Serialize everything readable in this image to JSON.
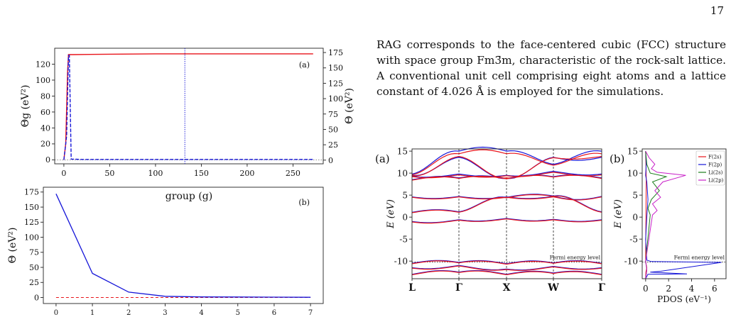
{
  "page_number": "17",
  "paragraph": "RAG corresponds to the face-centered cubic (FCC) structure with space group Fm3̄m, characteristic of the rock-salt lattice. A conventional unit cell comprising eight atoms and a lattice constant of 4.026 Å is employed for the simulations.",
  "colors": {
    "red": "#e8141a",
    "blue": "#1515d8",
    "green": "#1a7d1a",
    "magenta": "#c81fc8",
    "gray": "#666666"
  },
  "figures": {
    "a": {
      "panel_label": "(a)",
      "ylabel_left": "Θg (eV²)",
      "ylabel_right": "Θ (eV²)",
      "xlabel": "group (g)"
    },
    "b": {
      "panel_label": "(b)",
      "ylabel": "Θ (eV²)"
    },
    "band": {
      "panel_label": "(a)",
      "ylabel": "E (eV)",
      "fermi_label": "Fermi energy level"
    },
    "pdos": {
      "panel_label": "(b)",
      "ylabel": "E (eV)",
      "xlabel": "PDOS (eV⁻¹)",
      "fermi_label": "Fermi energy level"
    }
  },
  "chart_data": [
    {
      "type": "line",
      "panel": "(a)",
      "xlabel": "group (g)",
      "ylabel": "Θg (eV²)",
      "ylabel_right": "Θ (eV²)",
      "xlim": [
        -10,
        283
      ],
      "ylim": [
        -5,
        140
      ],
      "ylim_right": [
        -6,
        182
      ],
      "xticks": [
        0,
        50,
        100,
        150,
        200,
        250
      ],
      "yticks": [
        0,
        20,
        40,
        60,
        80,
        100,
        120
      ],
      "yticks_right": [
        0,
        25,
        50,
        75,
        100,
        125,
        150,
        175
      ],
      "series": [
        {
          "color": "red",
          "x": [
            0,
            2,
            4,
            5,
            10,
            50,
            100,
            150,
            200,
            272
          ],
          "y": [
            0,
            20,
            110,
            132,
            132,
            132.5,
            133,
            133,
            133,
            133
          ]
        },
        {
          "color": "blue",
          "x": [
            0,
            3,
            5,
            6,
            8,
            20,
            100,
            200,
            272
          ],
          "y": [
            0,
            30,
            131,
            131,
            1,
            0.5,
            0.5,
            0.5,
            0.5
          ]
        }
      ],
      "vline_x": 132
    },
    {
      "type": "line",
      "panel": "(b)",
      "ylabel": "Θ (eV²)",
      "xlim": [
        -0.35,
        7.35
      ],
      "ylim": [
        -10,
        183
      ],
      "xticks": [
        0,
        1,
        2,
        3,
        4,
        5,
        6,
        7
      ],
      "yticks": [
        0,
        25,
        50,
        75,
        100,
        125,
        150,
        175
      ],
      "series": [
        {
          "color": "blue",
          "x": [
            0,
            1,
            2,
            3,
            4,
            5,
            6,
            7
          ],
          "y": [
            172,
            40,
            9,
            2,
            1,
            0.8,
            0.6,
            0.4
          ]
        }
      ],
      "hline_y": 0
    },
    {
      "type": "line",
      "panel": "(a)",
      "ylabel": "E (eV)",
      "ylim": [
        -14,
        15.5
      ],
      "yticks": [
        -10,
        -5,
        0,
        5,
        10,
        15
      ],
      "xticks": [
        "L",
        "Γ",
        "X",
        "W",
        "Γ"
      ],
      "fermi_level": -10.2,
      "series": [
        {
          "color": "blue",
          "bands": [
            [
              -13,
              -12.5,
              -13,
              -12.7,
              -13
            ],
            [
              -11.5,
              -11,
              -11.8,
              -11.2,
              -11.5
            ],
            [
              -10.5,
              -10.3,
              -10.6,
              -10.4,
              -10.5
            ],
            [
              -1,
              -0.6,
              -0.3,
              -0.5,
              -0.6
            ],
            [
              1.1,
              1.2,
              4.5,
              4.8,
              1.2
            ],
            [
              4.6,
              4.7,
              4.6,
              4.7,
              4.7
            ],
            [
              8.5,
              8.9,
              8.8,
              9.2,
              8.9
            ],
            [
              9.5,
              13.6,
              8.8,
              13.6,
              13.6
            ],
            [
              9.8,
              15,
              15,
              12,
              15
            ],
            [
              9.3,
              9.8,
              9.5,
              10.4,
              9.8
            ]
          ]
        },
        {
          "color": "red",
          "bands": [
            [
              -13.1,
              -12.6,
              -13.1,
              -12.8,
              -13.1
            ],
            [
              -11.6,
              -11.1,
              -11.9,
              -11.3,
              -11.6
            ],
            [
              -10.6,
              -10.4,
              -10.7,
              -10.5,
              -10.6
            ],
            [
              -1.1,
              -0.7,
              -0.4,
              -0.6,
              -0.7
            ],
            [
              1,
              1.1,
              4.4,
              4.7,
              1.1
            ],
            [
              4.5,
              4.6,
              4.5,
              4.6,
              4.6
            ],
            [
              8.4,
              8.8,
              8.7,
              9.1,
              8.8
            ],
            [
              9.4,
              13.8,
              8.9,
              13.5,
              13.8
            ],
            [
              9.6,
              14.4,
              14.4,
              11.8,
              14.4
            ],
            [
              9.2,
              9.6,
              9.4,
              10.2,
              9.6
            ]
          ]
        }
      ]
    },
    {
      "type": "line",
      "panel": "(b)",
      "ylabel": "E (eV)",
      "xlabel": "PDOS (eV⁻¹)",
      "xlim": [
        -0.3,
        7
      ],
      "ylim": [
        -14,
        15.5
      ],
      "xticks": [
        0,
        2,
        4,
        6
      ],
      "yticks": [
        -10,
        -5,
        0,
        5,
        10,
        15
      ],
      "fermi_level": -10.2,
      "legend_position": "top-right",
      "series": [
        {
          "name": "F(2s)",
          "color": "red",
          "x": [
            0,
            0.02,
            0.1,
            0.03,
            0,
            0.05,
            0
          ],
          "y": [
            -14,
            -12.5,
            -11.5,
            -10.5,
            -10,
            9,
            15
          ]
        },
        {
          "name": "F(2p)",
          "color": "blue",
          "x": [
            0,
            0.2,
            3.6,
            0.4,
            1.3,
            6.6,
            0.5,
            0.1,
            0,
            0.1,
            0.2,
            0.1,
            0,
            0.05,
            0
          ],
          "y": [
            -14,
            -13,
            -12.9,
            -12.5,
            -12.3,
            -10.3,
            -10.1,
            -9.8,
            -5,
            0,
            4,
            8,
            9.5,
            12,
            15
          ]
        },
        {
          "name": "Li(2s)",
          "color": "green",
          "x": [
            0,
            0.1,
            0,
            0.4,
            0.2,
            0.5,
            1.2,
            0.6,
            1.8,
            0.4,
            0.1,
            0
          ],
          "y": [
            -14,
            -12,
            -10,
            0.5,
            2,
            4,
            6,
            8,
            9.2,
            10,
            12,
            15
          ]
        },
        {
          "name": "Li(2p)",
          "color": "magenta",
          "x": [
            0,
            0.1,
            0,
            0.6,
            1,
            0.6,
            1.3,
            0.8,
            1.5,
            3.5,
            1,
            0.5,
            0.8,
            0.3,
            0
          ],
          "y": [
            -14,
            -12,
            -10,
            0.5,
            1.5,
            3,
            4.5,
            6,
            8,
            9.5,
            10.2,
            11,
            12,
            13.5,
            15
          ]
        }
      ]
    }
  ]
}
